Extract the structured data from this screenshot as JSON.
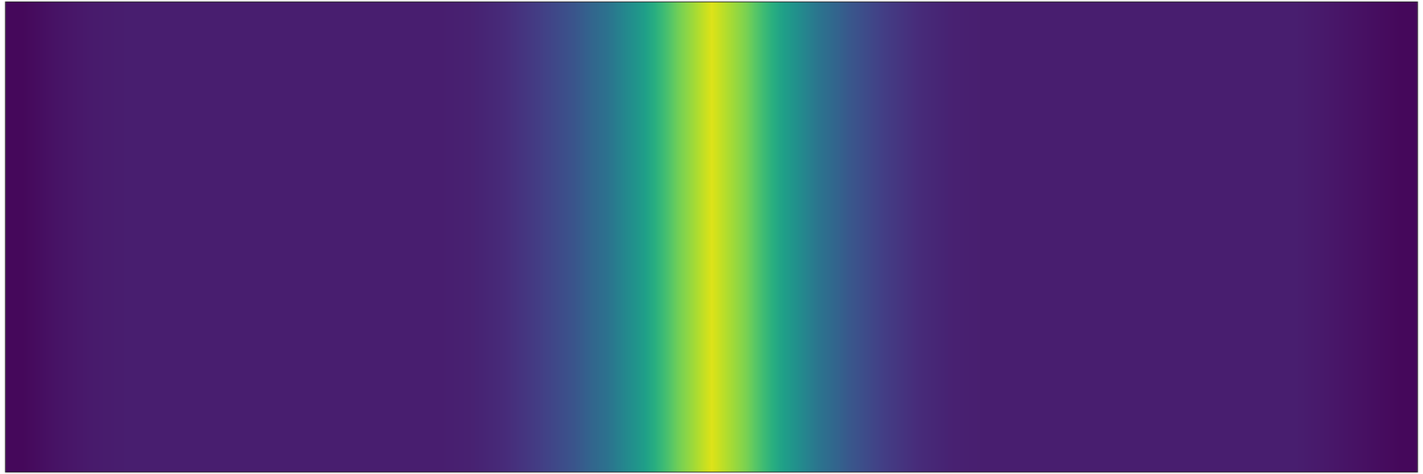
{
  "chart_data": {
    "type": "heatmap",
    "x": [
      0,
      0.025,
      0.05,
      0.075,
      0.1,
      0.125,
      0.15,
      0.175,
      0.2,
      0.225,
      0.25,
      0.275,
      0.3,
      0.325,
      0.35,
      0.375,
      0.4,
      0.425,
      0.45,
      0.475,
      0.5,
      0.525,
      0.55,
      0.575,
      0.6,
      0.625,
      0.65,
      0.675,
      0.7,
      0.725,
      0.75,
      0.775,
      0.8,
      0.825,
      0.85,
      0.875,
      0.9,
      0.925,
      0.95,
      0.975,
      1
    ],
    "y": [
      0
    ],
    "z": [
      [
        0.02,
        0.05,
        0.07,
        0.08,
        0.08,
        0.08,
        0.08,
        0.08,
        0.08,
        0.08,
        0.08,
        0.08,
        0.08,
        0.09,
        0.12,
        0.18,
        0.26,
        0.38,
        0.55,
        0.78,
        0.95,
        0.8,
        0.58,
        0.4,
        0.27,
        0.18,
        0.12,
        0.09,
        0.08,
        0.08,
        0.08,
        0.08,
        0.08,
        0.08,
        0.08,
        0.08,
        0.08,
        0.08,
        0.06,
        0.04,
        0.02
      ]
    ],
    "zlim": [
      0,
      1
    ],
    "xlim": [
      -0.0125,
      1.0125
    ],
    "ylim": [
      -0.5,
      0.5
    ],
    "tick_labels": false,
    "grid": false
  }
}
